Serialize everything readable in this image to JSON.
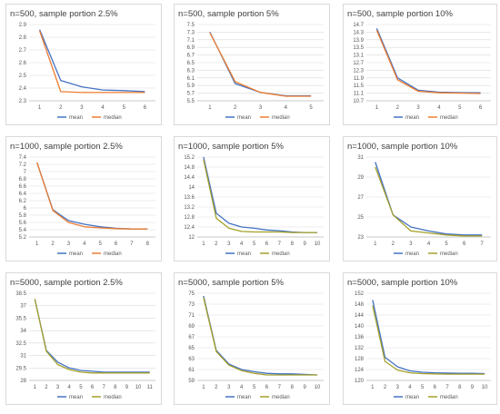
{
  "colors": {
    "mean": "#4472c4",
    "median_orange": "#ed7d31",
    "median_gold": "#a5a02a",
    "grid": "#d9d9d9",
    "axis": "#bfbfbf"
  },
  "chart_data": [
    {
      "type": "line",
      "title": "n=500, sample portion 2.5%",
      "categories": [
        "1",
        "2",
        "3",
        "4",
        "5",
        "6"
      ],
      "yticks": [
        "2.3",
        "2.4",
        "2.5",
        "2.6",
        "2.7",
        "2.8",
        "2.9"
      ],
      "ylim": [
        2.3,
        2.9
      ],
      "series": [
        {
          "name": "mean",
          "color": "#4472c4",
          "values": [
            2.86,
            2.46,
            2.41,
            2.385,
            2.38,
            2.372
          ]
        },
        {
          "name": "median",
          "color": "#ed7d31",
          "values": [
            2.85,
            2.372,
            2.365,
            2.365,
            2.365,
            2.365
          ]
        }
      ],
      "legend": "bottom"
    },
    {
      "type": "line",
      "title": "n=500, sample portion 5%",
      "categories": [
        "1",
        "2",
        "3",
        "4",
        "5"
      ],
      "yticks": [
        "5.5",
        "5.7",
        "5.9",
        "6.1",
        "6.3",
        "6.5",
        "6.7",
        "6.9",
        "7.1",
        "7.3",
        "7.5"
      ],
      "ylim": [
        5.5,
        7.5
      ],
      "series": [
        {
          "name": "mean",
          "color": "#4472c4",
          "values": [
            7.3,
            5.95,
            5.72,
            5.63,
            5.63
          ]
        },
        {
          "name": "median",
          "color": "#ed7d31",
          "values": [
            7.28,
            6.0,
            5.72,
            5.62,
            5.62
          ]
        }
      ],
      "legend": "bottom"
    },
    {
      "type": "line",
      "title": "n=500, sample portion 10%",
      "categories": [
        "1",
        "2",
        "3",
        "4",
        "5",
        "6"
      ],
      "yticks": [
        "10.7",
        "11.1",
        "11.5",
        "11.9",
        "12.3",
        "12.7",
        "13.1",
        "13.5",
        "13.9",
        "14.3",
        "14.7"
      ],
      "ylim": [
        10.7,
        14.7
      ],
      "series": [
        {
          "name": "mean",
          "color": "#4472c4",
          "values": [
            14.5,
            11.9,
            11.25,
            11.15,
            11.13,
            11.12
          ]
        },
        {
          "name": "median",
          "color": "#ed7d31",
          "values": [
            14.4,
            11.8,
            11.2,
            11.12,
            11.1,
            11.08
          ]
        }
      ],
      "legend": "bottom"
    },
    {
      "type": "line",
      "title": "n=1000, sample portion 2.5%",
      "categories": [
        "1",
        "2",
        "3",
        "4",
        "5",
        "6",
        "7",
        "8"
      ],
      "yticks": [
        "5.2",
        "5.4",
        "5.6",
        "5.8",
        "6",
        "6.2",
        "6.4",
        "6.6",
        "6.8",
        "7",
        "7.2",
        "7.4"
      ],
      "ylim": [
        5.2,
        7.4
      ],
      "series": [
        {
          "name": "mean",
          "color": "#4472c4",
          "values": [
            7.25,
            5.95,
            5.65,
            5.55,
            5.48,
            5.44,
            5.42,
            5.42
          ]
        },
        {
          "name": "median",
          "color": "#ed7d31",
          "values": [
            7.25,
            5.93,
            5.6,
            5.48,
            5.45,
            5.43,
            5.42,
            5.42
          ]
        }
      ],
      "legend": "bottom"
    },
    {
      "type": "line",
      "title": "n=1000, sample portion 5%",
      "categories": [
        "1",
        "2",
        "3",
        "4",
        "5",
        "6",
        "7",
        "8",
        "9",
        "10"
      ],
      "yticks": [
        "12",
        "12.4",
        "12.8",
        "13.2",
        "13.6",
        "14",
        "14.4",
        "14.8",
        "15.2"
      ],
      "ylim": [
        12,
        15.2
      ],
      "series": [
        {
          "name": "mean",
          "color": "#4472c4",
          "values": [
            15.2,
            12.95,
            12.55,
            12.4,
            12.35,
            12.28,
            12.25,
            12.2,
            12.18,
            12.18
          ]
        },
        {
          "name": "median",
          "color": "#a5a02a",
          "values": [
            15.1,
            12.75,
            12.35,
            12.22,
            12.2,
            12.2,
            12.2,
            12.18,
            12.18,
            12.18
          ]
        }
      ],
      "legend": "bottom"
    },
    {
      "type": "line",
      "title": "n=1000, sample portion 10%",
      "categories": [
        "1",
        "2",
        "3",
        "4",
        "5",
        "6",
        "7"
      ],
      "yticks": [
        "23",
        "25",
        "27",
        "29",
        "31"
      ],
      "ylim": [
        23,
        31
      ],
      "series": [
        {
          "name": "mean",
          "color": "#4472c4",
          "values": [
            30.5,
            25.2,
            24.0,
            23.6,
            23.3,
            23.2,
            23.2
          ]
        },
        {
          "name": "median",
          "color": "#a5a02a",
          "values": [
            30.0,
            25.2,
            23.6,
            23.4,
            23.2,
            23.1,
            23.1
          ]
        }
      ],
      "legend": "bottom"
    },
    {
      "type": "line",
      "title": "n=5000, sample portion 2.5%",
      "categories": [
        "1",
        "2",
        "3",
        "4",
        "5",
        "6",
        "7",
        "8",
        "9",
        "10",
        "11"
      ],
      "yticks": [
        "28",
        "29.5",
        "31",
        "32.5",
        "34",
        "35.5",
        "37",
        "38.5"
      ],
      "ylim": [
        28,
        38.5
      ],
      "series": [
        {
          "name": "mean",
          "color": "#4472c4",
          "values": [
            37.8,
            31.6,
            30.2,
            29.5,
            29.2,
            29.1,
            29.0,
            29.0,
            29.0,
            29.0,
            29.0
          ]
        },
        {
          "name": "median",
          "color": "#a5a02a",
          "values": [
            37.8,
            31.5,
            29.9,
            29.3,
            29.0,
            28.9,
            28.9,
            28.9,
            28.9,
            28.9,
            28.9
          ]
        }
      ],
      "legend": "bottom"
    },
    {
      "type": "line",
      "title": "n=5000, sample portion 5%",
      "categories": [
        "1",
        "2",
        "3",
        "4",
        "5",
        "6",
        "7",
        "8",
        "9",
        "10"
      ],
      "yticks": [
        "59",
        "61",
        "63",
        "65",
        "67",
        "69",
        "71",
        "73",
        "75"
      ],
      "ylim": [
        59,
        75
      ],
      "series": [
        {
          "name": "mean",
          "color": "#4472c4",
          "values": [
            74.5,
            64.5,
            62.0,
            61.0,
            60.6,
            60.3,
            60.2,
            60.2,
            60.1,
            60.0
          ]
        },
        {
          "name": "median",
          "color": "#a5a02a",
          "values": [
            74.2,
            64.3,
            61.8,
            60.8,
            60.3,
            60.0,
            60.0,
            60.0,
            60.0,
            60.0
          ]
        }
      ],
      "legend": "bottom"
    },
    {
      "type": "line",
      "title": "n=5000, sample portion 10%",
      "categories": [
        "1",
        "2",
        "3",
        "4",
        "5",
        "6",
        "7",
        "8",
        "9",
        "10"
      ],
      "yticks": [
        "120",
        "124",
        "128",
        "132",
        "136",
        "140",
        "144",
        "148",
        "152"
      ],
      "ylim": [
        120,
        152
      ],
      "series": [
        {
          "name": "mean",
          "color": "#4472c4",
          "values": [
            149.5,
            128.5,
            125.0,
            123.5,
            123.0,
            122.8,
            122.7,
            122.6,
            122.6,
            122.5
          ]
        },
        {
          "name": "median",
          "color": "#a5a02a",
          "values": [
            147.5,
            127.0,
            123.8,
            122.8,
            122.5,
            122.4,
            122.3,
            122.3,
            122.3,
            122.3
          ]
        }
      ],
      "legend": "bottom"
    }
  ]
}
